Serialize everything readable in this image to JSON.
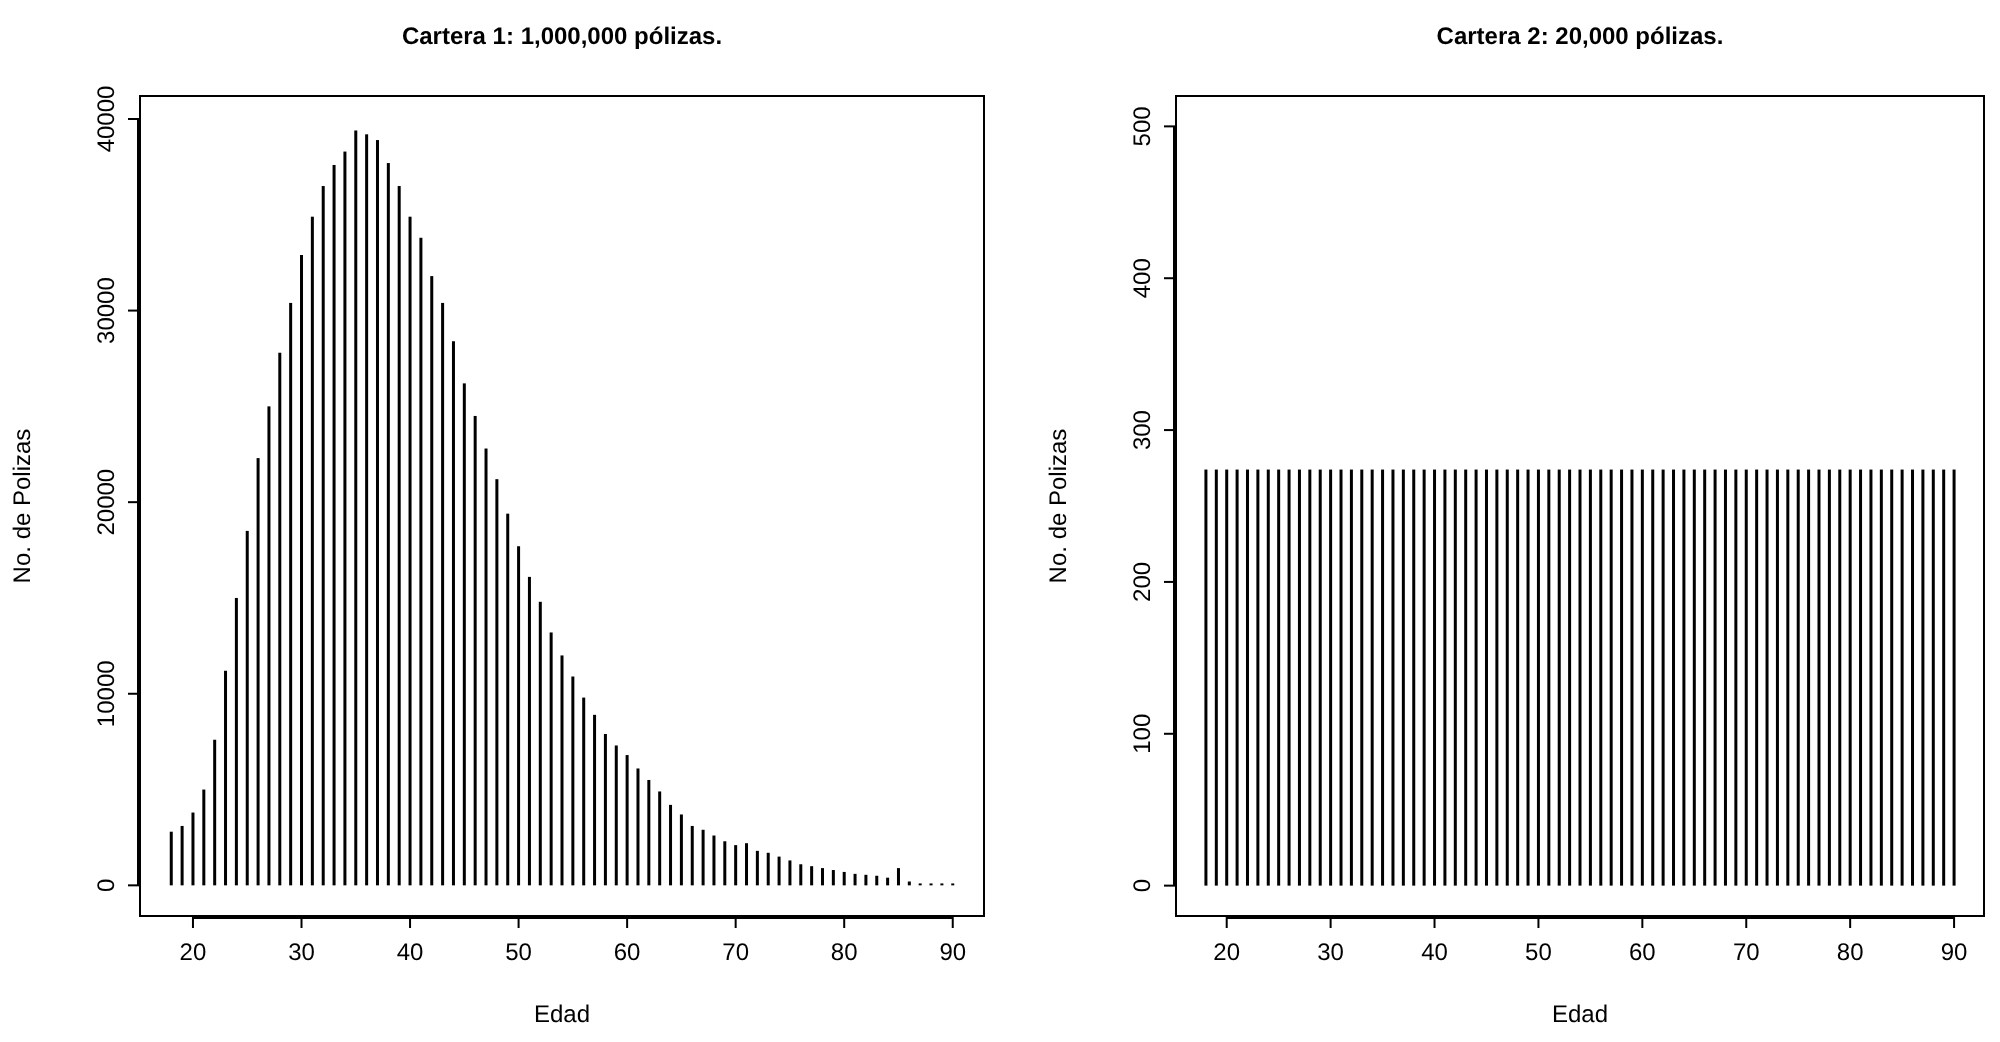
{
  "chart_data": [
    {
      "type": "bar",
      "title": "Cartera 1: 1,000,000 pólizas.",
      "xlabel": "Edad",
      "ylabel": "No. de Polizas",
      "x": [
        18,
        19,
        20,
        21,
        22,
        23,
        24,
        25,
        26,
        27,
        28,
        29,
        30,
        31,
        32,
        33,
        34,
        35,
        36,
        37,
        38,
        39,
        40,
        41,
        42,
        43,
        44,
        45,
        46,
        47,
        48,
        49,
        50,
        51,
        52,
        53,
        54,
        55,
        56,
        57,
        58,
        59,
        60,
        61,
        62,
        63,
        64,
        65,
        66,
        67,
        68,
        69,
        70,
        71,
        72,
        73,
        74,
        75,
        76,
        77,
        78,
        79,
        80,
        81,
        82,
        83,
        84,
        85,
        86,
        87,
        88,
        89,
        90
      ],
      "values": [
        2800,
        3100,
        3800,
        5000,
        7600,
        11200,
        15000,
        18500,
        22300,
        25000,
        27800,
        30400,
        32900,
        34900,
        36500,
        37600,
        38300,
        39400,
        39200,
        38900,
        37700,
        36500,
        34900,
        33800,
        31800,
        30400,
        28400,
        26200,
        24500,
        22800,
        21200,
        19400,
        17700,
        16100,
        14800,
        13200,
        12000,
        10900,
        9800,
        8900,
        7900,
        7300,
        6800,
        6100,
        5500,
        4900,
        4200,
        3700,
        3100,
        2900,
        2600,
        2300,
        2100,
        2200,
        1800,
        1700,
        1500,
        1300,
        1100,
        1000,
        900,
        800,
        700,
        600,
        550,
        500,
        400,
        900,
        200,
        100,
        100,
        100,
        100
      ],
      "color": "#000000",
      "xlim": [
        15.12,
        92.88
      ],
      "xticks": [
        20,
        30,
        40,
        50,
        60,
        70,
        80,
        90
      ],
      "ylim": [
        -1600,
        41200
      ],
      "yticks": [
        0,
        10000,
        20000,
        30000,
        40000
      ]
    },
    {
      "type": "bar",
      "title": "Cartera 2: 20,000 pólizas.",
      "xlabel": "Edad",
      "ylabel": "No. de Polizas",
      "x": [
        18,
        19,
        20,
        21,
        22,
        23,
        24,
        25,
        26,
        27,
        28,
        29,
        30,
        31,
        32,
        33,
        34,
        35,
        36,
        37,
        38,
        39,
        40,
        41,
        42,
        43,
        44,
        45,
        46,
        47,
        48,
        49,
        50,
        51,
        52,
        53,
        54,
        55,
        56,
        57,
        58,
        59,
        60,
        61,
        62,
        63,
        64,
        65,
        66,
        67,
        68,
        69,
        70,
        71,
        72,
        73,
        74,
        75,
        76,
        77,
        78,
        79,
        80,
        81,
        82,
        83,
        84,
        85,
        86,
        87,
        88,
        89,
        90
      ],
      "values": [
        274,
        274,
        274,
        274,
        274,
        274,
        274,
        274,
        274,
        274,
        274,
        274,
        274,
        274,
        274,
        274,
        274,
        274,
        274,
        274,
        274,
        274,
        274,
        274,
        274,
        274,
        274,
        274,
        274,
        274,
        274,
        274,
        274,
        274,
        274,
        274,
        274,
        274,
        274,
        274,
        274,
        274,
        274,
        274,
        274,
        274,
        274,
        274,
        274,
        274,
        274,
        274,
        274,
        274,
        274,
        274,
        274,
        274,
        274,
        274,
        274,
        274,
        274,
        274,
        274,
        274,
        274,
        274,
        274,
        274,
        274,
        274,
        274
      ],
      "color": "#000000",
      "xlim": [
        15.12,
        92.88
      ],
      "xticks": [
        20,
        30,
        40,
        50,
        60,
        70,
        80,
        90
      ],
      "ylim": [
        -20,
        520
      ],
      "yticks": [
        0,
        100,
        200,
        300,
        400,
        500
      ]
    }
  ]
}
